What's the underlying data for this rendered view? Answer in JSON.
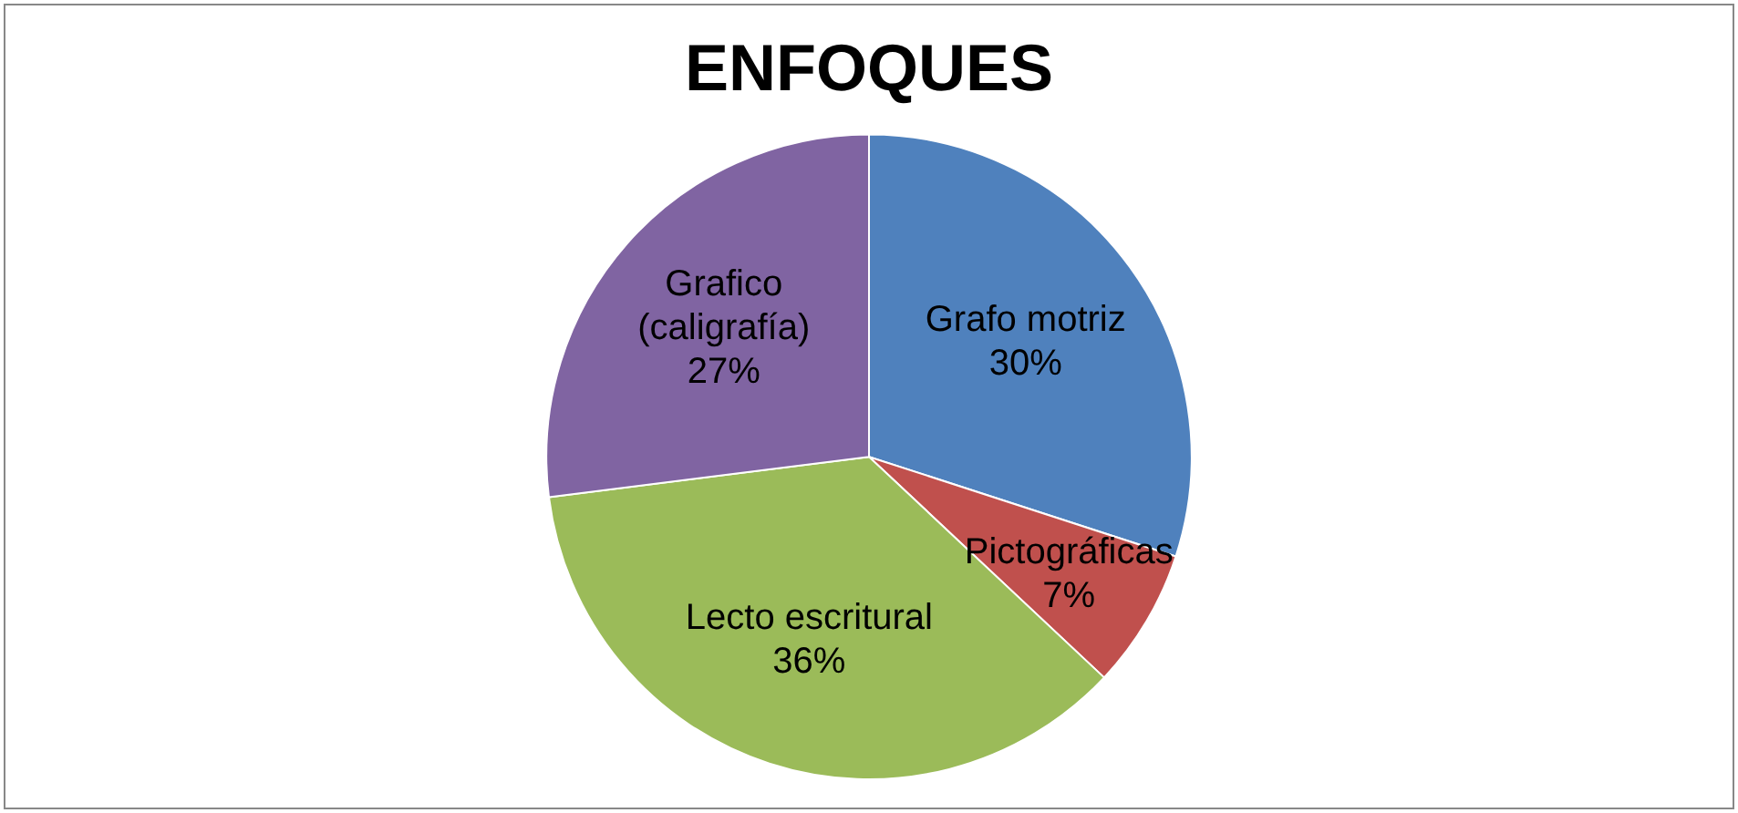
{
  "chart_data": {
    "type": "pie",
    "title": "ENFOQUES",
    "categories": [
      "Grafo motriz",
      "Pictográficas",
      "Lecto escritural",
      "Grafico (caligrafía)"
    ],
    "values": [
      30,
      7,
      36,
      27
    ],
    "value_labels": [
      "30%",
      "7%",
      "36%",
      "27%"
    ],
    "colors": [
      "#4f81bd",
      "#c0504d",
      "#9bbb59",
      "#8064a2"
    ],
    "legend": false
  }
}
